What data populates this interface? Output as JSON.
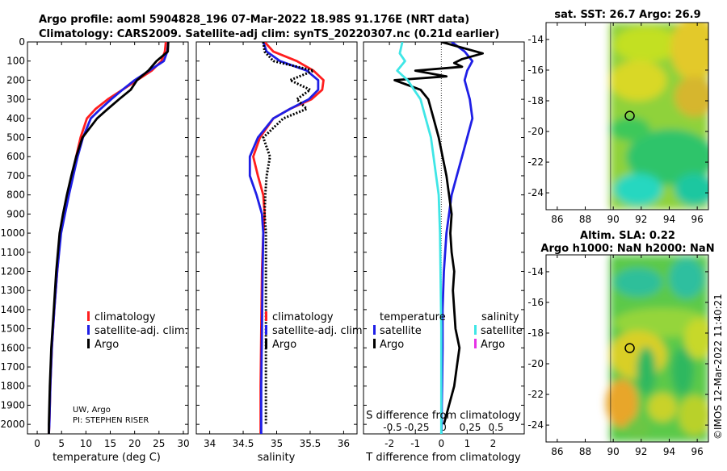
{
  "title": {
    "line1": "Argo profile: aoml 5904828_196 07-Mar-2022 18.98S 91.176E (NRT data)",
    "line2": "Climatology: CARS2009. Satellite-adj clim: synTS_20220307.nc (0.21d earlier)"
  },
  "colors": {
    "climatology": "#ff1e1e",
    "satellite_adj": "#1f1fe6",
    "argo": "#000000",
    "salinity_satellite": "#3fe6e6",
    "salinity_argo": "#e632e6"
  },
  "credit": {
    "line1": "UW, Argo",
    "line2": "PI: STEPHEN RISER"
  },
  "timestamp": "©IMOS 12-Mar-2022 11:40:21",
  "chart_data": [
    {
      "id": "temperature",
      "type": "line",
      "xlabel": "temperature (deg C)",
      "ylabel": "",
      "xlim": [
        -2,
        31
      ],
      "ylim": [
        2050,
        0
      ],
      "xticks": [
        0,
        5,
        10,
        15,
        20,
        25,
        30
      ],
      "yticks": [
        0,
        100,
        200,
        300,
        400,
        500,
        600,
        700,
        800,
        900,
        1000,
        1100,
        1200,
        1300,
        1400,
        1500,
        1600,
        1700,
        1800,
        1900,
        2000
      ],
      "legend": [
        "climatology",
        "satellite-adj. clim.",
        "Argo"
      ],
      "legend_position": "lower-right",
      "series": [
        {
          "name": "climatology",
          "color": "#ff1e1e",
          "x": [
            26.4,
            26.2,
            25.5,
            23.5,
            20.5,
            17.5,
            14.5,
            12.0,
            10.2,
            8.9,
            8.0,
            7.2,
            6.4,
            5.6,
            4.8,
            4.1,
            3.5,
            3.0,
            2.7,
            2.5,
            2.4
          ],
          "y": [
            0,
            50,
            100,
            150,
            200,
            250,
            300,
            350,
            400,
            500,
            600,
            700,
            800,
            900,
            1000,
            1200,
            1400,
            1600,
            1800,
            2000,
            2050
          ]
        },
        {
          "name": "satellite-adj. clim.",
          "color": "#1f1fe6",
          "x": [
            26.9,
            26.7,
            26.0,
            23.0,
            20.0,
            17.5,
            15.2,
            13.0,
            11.0,
            9.4,
            8.3,
            7.4,
            6.5,
            5.7,
            4.9,
            4.1,
            3.5,
            3.0,
            2.7,
            2.5,
            2.4
          ],
          "y": [
            0,
            50,
            100,
            150,
            200,
            250,
            300,
            350,
            400,
            500,
            600,
            700,
            800,
            900,
            1000,
            1200,
            1400,
            1600,
            1800,
            2000,
            2050
          ]
        },
        {
          "name": "Argo",
          "color": "#000000",
          "x": [
            26.9,
            26.8,
            24.5,
            22.8,
            20.5,
            19.2,
            16.8,
            14.5,
            12.3,
            9.3,
            8.0,
            7.0,
            6.1,
            5.3,
            4.6,
            3.9,
            3.4,
            2.9,
            2.6,
            2.4,
            2.4
          ],
          "y": [
            0,
            50,
            100,
            150,
            200,
            250,
            300,
            350,
            400,
            500,
            600,
            700,
            800,
            900,
            1000,
            1200,
            1400,
            1600,
            1800,
            2000,
            2050
          ]
        }
      ]
    },
    {
      "id": "salinity",
      "type": "line",
      "xlabel": "salinity",
      "ylabel": "",
      "xlim": [
        33.8,
        36.2
      ],
      "ylim": [
        2050,
        0
      ],
      "xticks": [
        34,
        34.5,
        35,
        35.5,
        36
      ],
      "legend": [
        "climatology",
        "satellite-adj. clim.",
        "Argo"
      ],
      "legend_position": "lower-right",
      "series": [
        {
          "name": "climatology",
          "color": "#ff1e1e",
          "x": [
            34.82,
            34.95,
            35.3,
            35.55,
            35.7,
            35.68,
            35.52,
            35.2,
            34.95,
            34.75,
            34.65,
            34.72,
            34.8,
            34.82,
            34.8,
            34.78,
            34.77,
            34.76,
            34.76
          ],
          "y": [
            0,
            50,
            100,
            150,
            200,
            250,
            300,
            350,
            400,
            500,
            600,
            700,
            800,
            900,
            1000,
            1200,
            1500,
            1800,
            2050
          ]
        },
        {
          "name": "satellite-adj. clim.",
          "color": "#1f1fe6",
          "x": [
            34.8,
            34.85,
            35.05,
            35.45,
            35.62,
            35.62,
            35.48,
            35.2,
            34.95,
            34.72,
            34.6,
            34.6,
            34.7,
            34.78,
            34.8,
            34.79,
            34.78,
            34.77,
            34.77
          ],
          "y": [
            0,
            50,
            100,
            150,
            200,
            250,
            300,
            350,
            400,
            500,
            600,
            700,
            800,
            900,
            1000,
            1200,
            1500,
            1800,
            2050
          ]
        },
        {
          "name": "Argo",
          "color": "#000000",
          "x": [
            34.8,
            34.82,
            34.95,
            35.55,
            35.2,
            35.5,
            35.3,
            35.45,
            35.1,
            34.8,
            34.9,
            34.85,
            34.83,
            34.82,
            34.84,
            34.84,
            34.84,
            34.84,
            34.84
          ],
          "y": [
            0,
            50,
            100,
            150,
            200,
            250,
            300,
            350,
            400,
            500,
            600,
            700,
            800,
            900,
            1000,
            1200,
            1500,
            1800,
            2000
          ]
        }
      ]
    },
    {
      "id": "difference",
      "type": "line",
      "xlabel": "T difference from climatology",
      "top_axis_label": "S difference from climatology",
      "xlim": [
        -3,
        3.2
      ],
      "ylim": [
        2050,
        0
      ],
      "xticks": [
        -2,
        -1,
        0,
        1,
        2
      ],
      "top_ticks": [
        -0.5,
        -0.25,
        0,
        0.25,
        0.5
      ],
      "legend_temperature_header": "temperature",
      "legend_salinity_header": "salinity",
      "legend": [
        "satellite",
        "Argo",
        "satellite",
        "Argo"
      ],
      "legend_position": "lower",
      "series": [
        {
          "name": "temperature satellite",
          "color": "#1f1fe6",
          "x": [
            0.4,
            0.9,
            1.2,
            1.0,
            0.9,
            1.0,
            1.1,
            1.2,
            1.0,
            0.8,
            0.6,
            0.4,
            0.3,
            0.2,
            0.15,
            0.1,
            0.05,
            0.05,
            0.03,
            0.02,
            0.02,
            0.0
          ],
          "y": [
            0,
            50,
            100,
            150,
            200,
            250,
            300,
            400,
            500,
            600,
            700,
            800,
            900,
            1000,
            1100,
            1200,
            1400,
            1600,
            1800,
            1900,
            2000,
            2050
          ]
        },
        {
          "name": "temperature Argo",
          "color": "#000000",
          "x": [
            0.0,
            1.6,
            0.8,
            0.5,
            0.8,
            -1.0,
            0.2,
            -1.8,
            -0.8,
            -0.5,
            -0.3,
            -0.1,
            0.2,
            0.3,
            0.4,
            0.35,
            0.4,
            0.5,
            0.45,
            0.5,
            0.55,
            0.7,
            0.6,
            0.5,
            0.3,
            0.1
          ],
          "y": [
            0,
            60,
            90,
            110,
            130,
            150,
            180,
            200,
            250,
            300,
            400,
            500,
            700,
            800,
            900,
            1000,
            1100,
            1200,
            1300,
            1400,
            1500,
            1600,
            1700,
            1800,
            1900,
            2000
          ]
        },
        {
          "name": "salinity satellite",
          "color": "#3fe6e6",
          "x": [
            -1.5,
            -1.6,
            -1.4,
            -1.7,
            -1.3,
            -0.8,
            -0.6,
            -0.4,
            -0.3,
            -0.2,
            -0.1,
            -0.05,
            0.0,
            0.0
          ],
          "y": [
            0,
            60,
            100,
            150,
            200,
            300,
            400,
            500,
            600,
            700,
            800,
            1000,
            1500,
            2050
          ]
        },
        {
          "name": "salinity Argo",
          "color": "#e632e6",
          "x": [],
          "y": []
        }
      ]
    }
  ],
  "maps": [
    {
      "id": "sst-map",
      "title": "sat. SST: 26.7 Argo: 26.9",
      "xticks": [
        86,
        88,
        90,
        92,
        94,
        96
      ],
      "yticks": [
        -14,
        -16,
        -18,
        -20,
        -22,
        -24
      ],
      "xlim": [
        85.2,
        96.8
      ],
      "ylim": [
        -25.1,
        -12.9
      ],
      "data_left_lon": 89.9,
      "float_position": {
        "lon": 91.176,
        "lat": -18.98
      }
    },
    {
      "id": "sla-map",
      "title_line1": "Altim. SLA: 0.22",
      "title_line2": "Argo h1000: NaN h2000: NaN",
      "xticks": [
        86,
        88,
        90,
        92,
        94,
        96
      ],
      "yticks": [
        -14,
        -16,
        -18,
        -20,
        -22,
        -24
      ],
      "xlim": [
        85.2,
        96.8
      ],
      "ylim": [
        -25.1,
        -12.9
      ],
      "data_left_lon": 89.9,
      "float_position": {
        "lon": 91.176,
        "lat": -18.98
      }
    }
  ]
}
